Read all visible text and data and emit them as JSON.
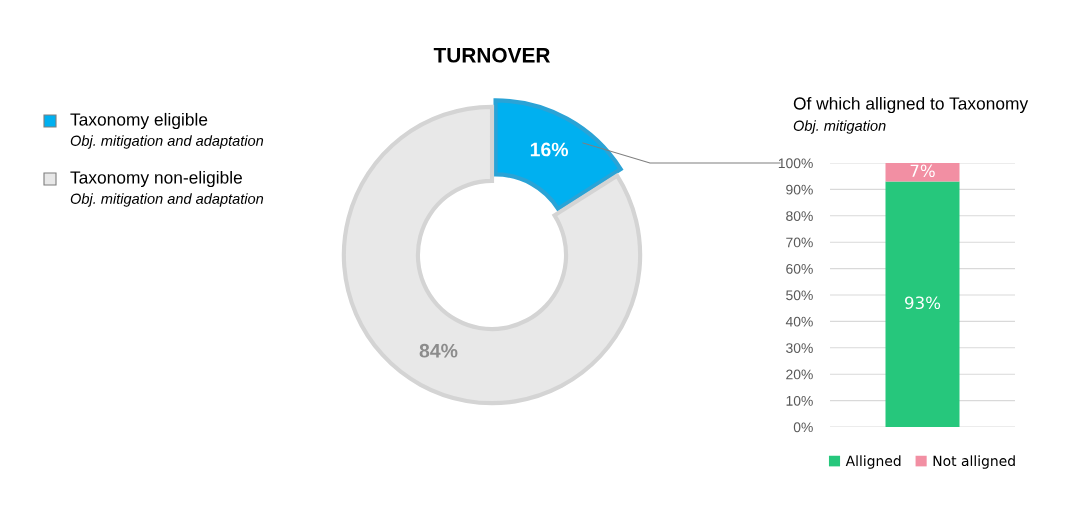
{
  "chart_data": [
    {
      "type": "donut",
      "title": "TURNOVER",
      "categories": [
        "Taxonomy eligible",
        "Taxonomy non-eligible"
      ],
      "values": [
        16,
        84
      ],
      "colors": [
        "#00b0f0",
        "#e8e8e8"
      ],
      "value_labels": [
        "16%",
        "84%"
      ],
      "legend": "top left",
      "annotations": [
        "Obj. mitigation and adaptation",
        "Obj. mitigation and adaptation"
      ]
    },
    {
      "type": "bar",
      "stacked": true,
      "title": "Of which alligned to Taxonomy",
      "subtitle": "Obj. mitigation",
      "categories": [
        null
      ],
      "series": [
        {
          "name": "Alligned",
          "color": "#26c77c",
          "values": [
            93
          ],
          "value_labels": [
            "93%"
          ]
        },
        {
          "name": "Not alligned",
          "color": "#f28fa3",
          "values": [
            7
          ],
          "value_labels": [
            "7%"
          ]
        }
      ],
      "ylim": [
        0,
        100
      ],
      "yticks": [
        {
          "value": 0,
          "label": "0%"
        },
        {
          "value": 10,
          "label": "10%"
        },
        {
          "value": 20,
          "label": "20%"
        },
        {
          "value": 30,
          "label": "30%"
        },
        {
          "value": 40,
          "label": "40%"
        },
        {
          "value": 50,
          "label": "50%"
        },
        {
          "value": 60,
          "label": "60%"
        },
        {
          "value": 70,
          "label": "70%"
        },
        {
          "value": 80,
          "label": "80%"
        },
        {
          "value": 90,
          "label": "90%"
        },
        {
          "value": 100,
          "label": "100%"
        }
      ],
      "grid": "y",
      "legend": "bottom"
    }
  ]
}
